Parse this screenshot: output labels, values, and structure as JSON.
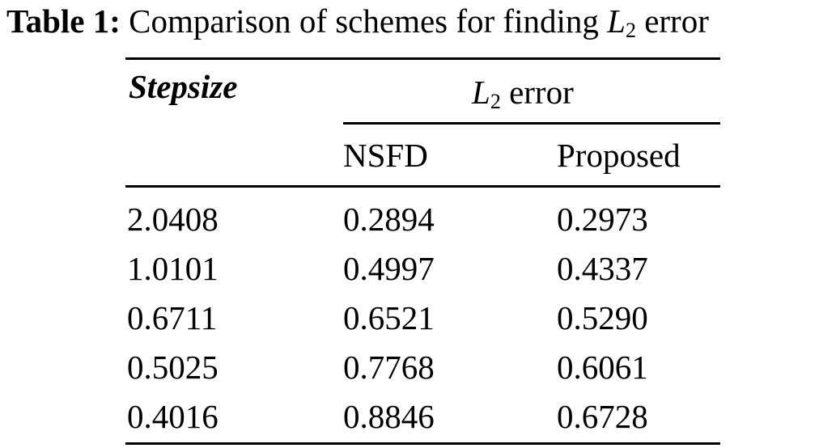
{
  "caption": {
    "label": "Table 1:",
    "text": "Comparison of schemes for finding",
    "symbol": "L",
    "subscript": "2",
    "suffix": "error"
  },
  "table": {
    "header": {
      "stepsize": "Stepsize",
      "group_symbol": "L",
      "group_subscript": "2",
      "group_suffix": "error",
      "col_nsfd": "NSFD",
      "col_proposed": "Proposed"
    },
    "rows": [
      {
        "stepsize": "2.0408",
        "nsfd": "0.2894",
        "proposed": "0.2973"
      },
      {
        "stepsize": "1.0101",
        "nsfd": "0.4997",
        "proposed": "0.4337"
      },
      {
        "stepsize": "0.6711",
        "nsfd": "0.6521",
        "proposed": "0.5290"
      },
      {
        "stepsize": "0.5025",
        "nsfd": "0.7768",
        "proposed": "0.6061"
      },
      {
        "stepsize": "0.4016",
        "nsfd": "0.8846",
        "proposed": "0.6728"
      }
    ]
  }
}
